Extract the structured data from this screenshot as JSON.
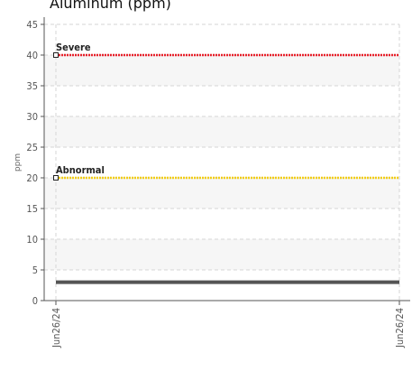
{
  "chart_data": {
    "type": "line",
    "title": "Aluminum (ppm)",
    "ylabel": "ppm",
    "xlabel": "",
    "ylim": [
      0,
      45
    ],
    "yticks": [
      0,
      5,
      10,
      15,
      20,
      25,
      30,
      35,
      40,
      45
    ],
    "x": [
      "Jun26/24",
      "Jun26/24"
    ],
    "grid": true,
    "series": [
      {
        "values": [
          3,
          3
        ],
        "color": "#555555"
      }
    ],
    "thresholds": [
      {
        "name": "Severe",
        "value": 40,
        "color": "#e8202a"
      },
      {
        "name": "Abnormal",
        "value": 20,
        "color": "#f2cd13"
      }
    ]
  }
}
